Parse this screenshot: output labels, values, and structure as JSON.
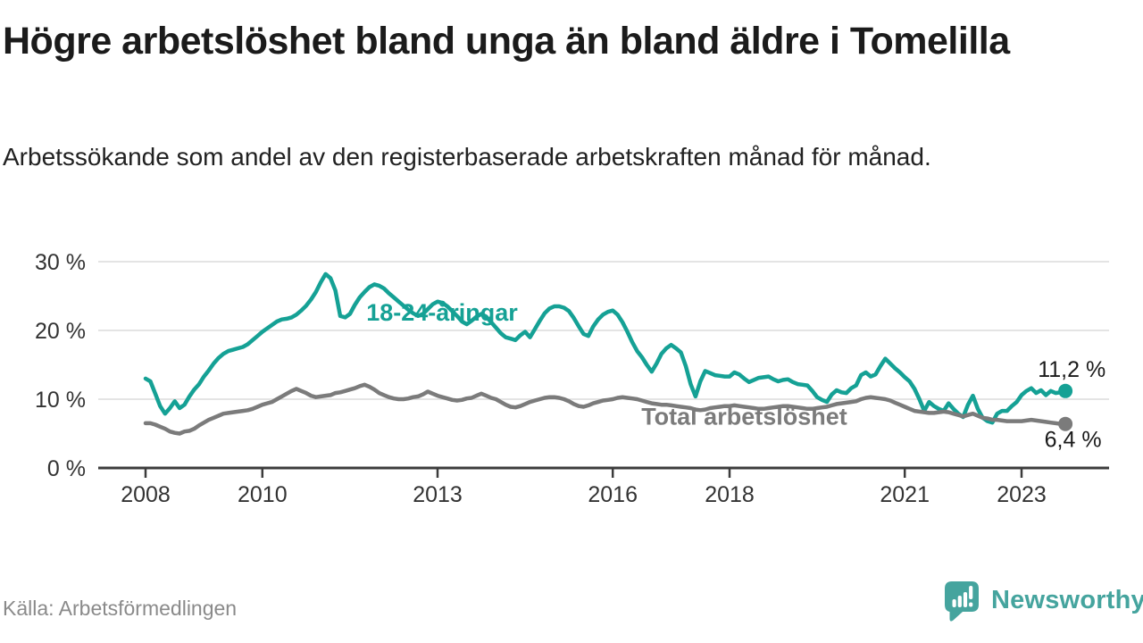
{
  "header": {
    "title": "Högre arbetslöshet bland unga än bland äldre i Tomelilla",
    "subtitle": "Arbetssökande som andel av den registerbaserade arbetskraften månad för månad."
  },
  "footer": {
    "source": "Källa: Arbetsförmedlingen",
    "logo_text": "Newsworthy",
    "logo_color": "#45A49E"
  },
  "chart_data": {
    "type": "line",
    "frequency": "monthly",
    "x_start": {
      "year": 2008,
      "month": 1
    },
    "x_end": {
      "year": 2023,
      "month": 10
    },
    "xlim_years": [
      2007.2,
      2024.5
    ],
    "ylim": [
      0,
      30
    ],
    "grid": "horizontal",
    "legend_position": "inline-labels",
    "y_tick_values": [
      30,
      20,
      10,
      0
    ],
    "y_tick_labels": [
      "30 %",
      "20 %",
      "10 %",
      "0 %"
    ],
    "x_tick_values": [
      2008,
      2010,
      2013,
      2016,
      2018,
      2021,
      2023
    ],
    "x_tick_labels": [
      "2008",
      "2010",
      "2013",
      "2016",
      "2018",
      "2021",
      "2023"
    ],
    "series": [
      {
        "name": "18-24-åringar",
        "color": "#15A195",
        "end_value": 11.2,
        "end_label": "11,2 %",
        "values": [
          13.0,
          12.6,
          10.8,
          9.0,
          7.9,
          8.7,
          9.7,
          8.7,
          9.2,
          10.4,
          11.4,
          12.2,
          13.3,
          14.2,
          15.2,
          16.0,
          16.6,
          17.0,
          17.2,
          17.4,
          17.6,
          18.0,
          18.6,
          19.2,
          19.8,
          20.3,
          20.8,
          21.3,
          21.6,
          21.7,
          21.9,
          22.3,
          22.9,
          23.6,
          24.5,
          25.6,
          27.0,
          28.2,
          27.6,
          25.8,
          22.1,
          21.9,
          22.4,
          23.7,
          24.8,
          25.6,
          26.3,
          26.7,
          26.5,
          26.1,
          25.4,
          24.8,
          24.2,
          23.6,
          23.0,
          22.5,
          22.1,
          22.4,
          23.1,
          23.8,
          24.2,
          24.0,
          23.5,
          22.8,
          22.1,
          21.3,
          20.9,
          21.4,
          22.0,
          22.4,
          22.0,
          21.2,
          20.4,
          19.6,
          19.0,
          18.8,
          18.6,
          19.3,
          19.8,
          19.0,
          20.2,
          21.4,
          22.5,
          23.2,
          23.5,
          23.5,
          23.3,
          22.8,
          21.8,
          20.6,
          19.5,
          19.2,
          20.6,
          21.6,
          22.3,
          22.7,
          22.9,
          22.3,
          21.2,
          19.8,
          18.3,
          17.0,
          16.1,
          15.0,
          14.0,
          15.2,
          16.6,
          17.4,
          17.9,
          17.4,
          16.8,
          14.8,
          12.2,
          10.4,
          12.6,
          14.1,
          13.8,
          13.5,
          13.4,
          13.3,
          13.3,
          13.9,
          13.6,
          13.0,
          12.5,
          12.8,
          13.1,
          13.2,
          13.3,
          12.9,
          12.6,
          12.8,
          12.9,
          12.5,
          12.2,
          12.1,
          12.0,
          11.2,
          10.3,
          9.9,
          9.6,
          10.7,
          11.3,
          11.0,
          10.9,
          11.6,
          12.0,
          13.5,
          13.9,
          13.3,
          13.6,
          14.8,
          15.9,
          15.2,
          14.5,
          13.9,
          13.2,
          12.6,
          11.5,
          10.0,
          8.3,
          9.6,
          9.0,
          8.6,
          8.3,
          9.4,
          8.6,
          7.9,
          7.4,
          9.2,
          10.5,
          8.6,
          7.3,
          6.8,
          6.6,
          7.9,
          8.3,
          8.3,
          9.0,
          9.6,
          10.6,
          11.2,
          11.6,
          10.9,
          11.3,
          10.6,
          11.2,
          10.9,
          11.0,
          11.2
        ]
      },
      {
        "name": "Total arbetslöshet",
        "color": "#7B7B7B",
        "end_value": 6.4,
        "end_label": "6,4 %",
        "values": [
          6.5,
          6.5,
          6.3,
          6.0,
          5.7,
          5.3,
          5.1,
          5.0,
          5.3,
          5.4,
          5.7,
          6.2,
          6.6,
          7.0,
          7.3,
          7.6,
          7.9,
          8.0,
          8.1,
          8.2,
          8.3,
          8.4,
          8.6,
          8.9,
          9.2,
          9.4,
          9.6,
          10.0,
          10.4,
          10.8,
          11.2,
          11.5,
          11.2,
          10.9,
          10.5,
          10.3,
          10.4,
          10.5,
          10.6,
          10.9,
          11.0,
          11.2,
          11.4,
          11.6,
          11.9,
          12.1,
          11.8,
          11.4,
          10.9,
          10.6,
          10.3,
          10.1,
          10.0,
          10.0,
          10.1,
          10.3,
          10.4,
          10.7,
          11.1,
          10.8,
          10.5,
          10.3,
          10.1,
          9.9,
          9.8,
          9.9,
          10.1,
          10.2,
          10.5,
          10.8,
          10.5,
          10.2,
          10.0,
          9.6,
          9.2,
          8.9,
          8.8,
          9.0,
          9.3,
          9.6,
          9.8,
          10.0,
          10.2,
          10.3,
          10.3,
          10.2,
          10.0,
          9.7,
          9.3,
          9.0,
          8.9,
          9.1,
          9.4,
          9.6,
          9.8,
          9.9,
          10.0,
          10.2,
          10.3,
          10.2,
          10.1,
          10.0,
          9.8,
          9.6,
          9.4,
          9.3,
          9.2,
          9.2,
          9.1,
          9.0,
          8.9,
          8.8,
          8.7,
          8.5,
          8.4,
          8.5,
          8.7,
          8.8,
          8.9,
          9.0,
          9.0,
          9.1,
          9.0,
          8.9,
          8.8,
          8.7,
          8.6,
          8.6,
          8.7,
          8.8,
          8.9,
          9.0,
          9.0,
          8.9,
          8.8,
          8.7,
          8.6,
          8.6,
          8.7,
          8.8,
          8.9,
          9.1,
          9.3,
          9.4,
          9.5,
          9.6,
          9.7,
          10.0,
          10.2,
          10.3,
          10.2,
          10.1,
          10.0,
          9.8,
          9.5,
          9.2,
          8.9,
          8.6,
          8.3,
          8.2,
          8.1,
          8.0,
          8.0,
          8.1,
          8.2,
          8.1,
          7.9,
          7.7,
          7.5,
          7.7,
          7.9,
          7.6,
          7.3,
          7.2,
          7.0,
          7.0,
          6.9,
          6.8,
          6.8,
          6.8,
          6.8,
          6.9,
          7.0,
          6.9,
          6.8,
          6.7,
          6.6,
          6.5,
          6.4,
          6.4
        ]
      }
    ],
    "annotations": [
      {
        "kind": "series-label",
        "text": "18-24-åringar",
        "year": 2011.78,
        "value": 22.6,
        "color": "#15A195",
        "anchor": "start"
      },
      {
        "kind": "series-label",
        "text": "Total arbetslöshet",
        "year": 2016.49,
        "value": 7.5,
        "color": "#7B7B7B",
        "anchor": "start"
      },
      {
        "kind": "value-label",
        "text": "11,2 %",
        "year": 2024.44,
        "value": 14.4,
        "color": "#1a1a1a",
        "anchor": "end"
      },
      {
        "kind": "value-label",
        "text": "6,4 %",
        "year": 2024.37,
        "value": 4.2,
        "color": "#1a1a1a",
        "anchor": "end"
      }
    ]
  }
}
